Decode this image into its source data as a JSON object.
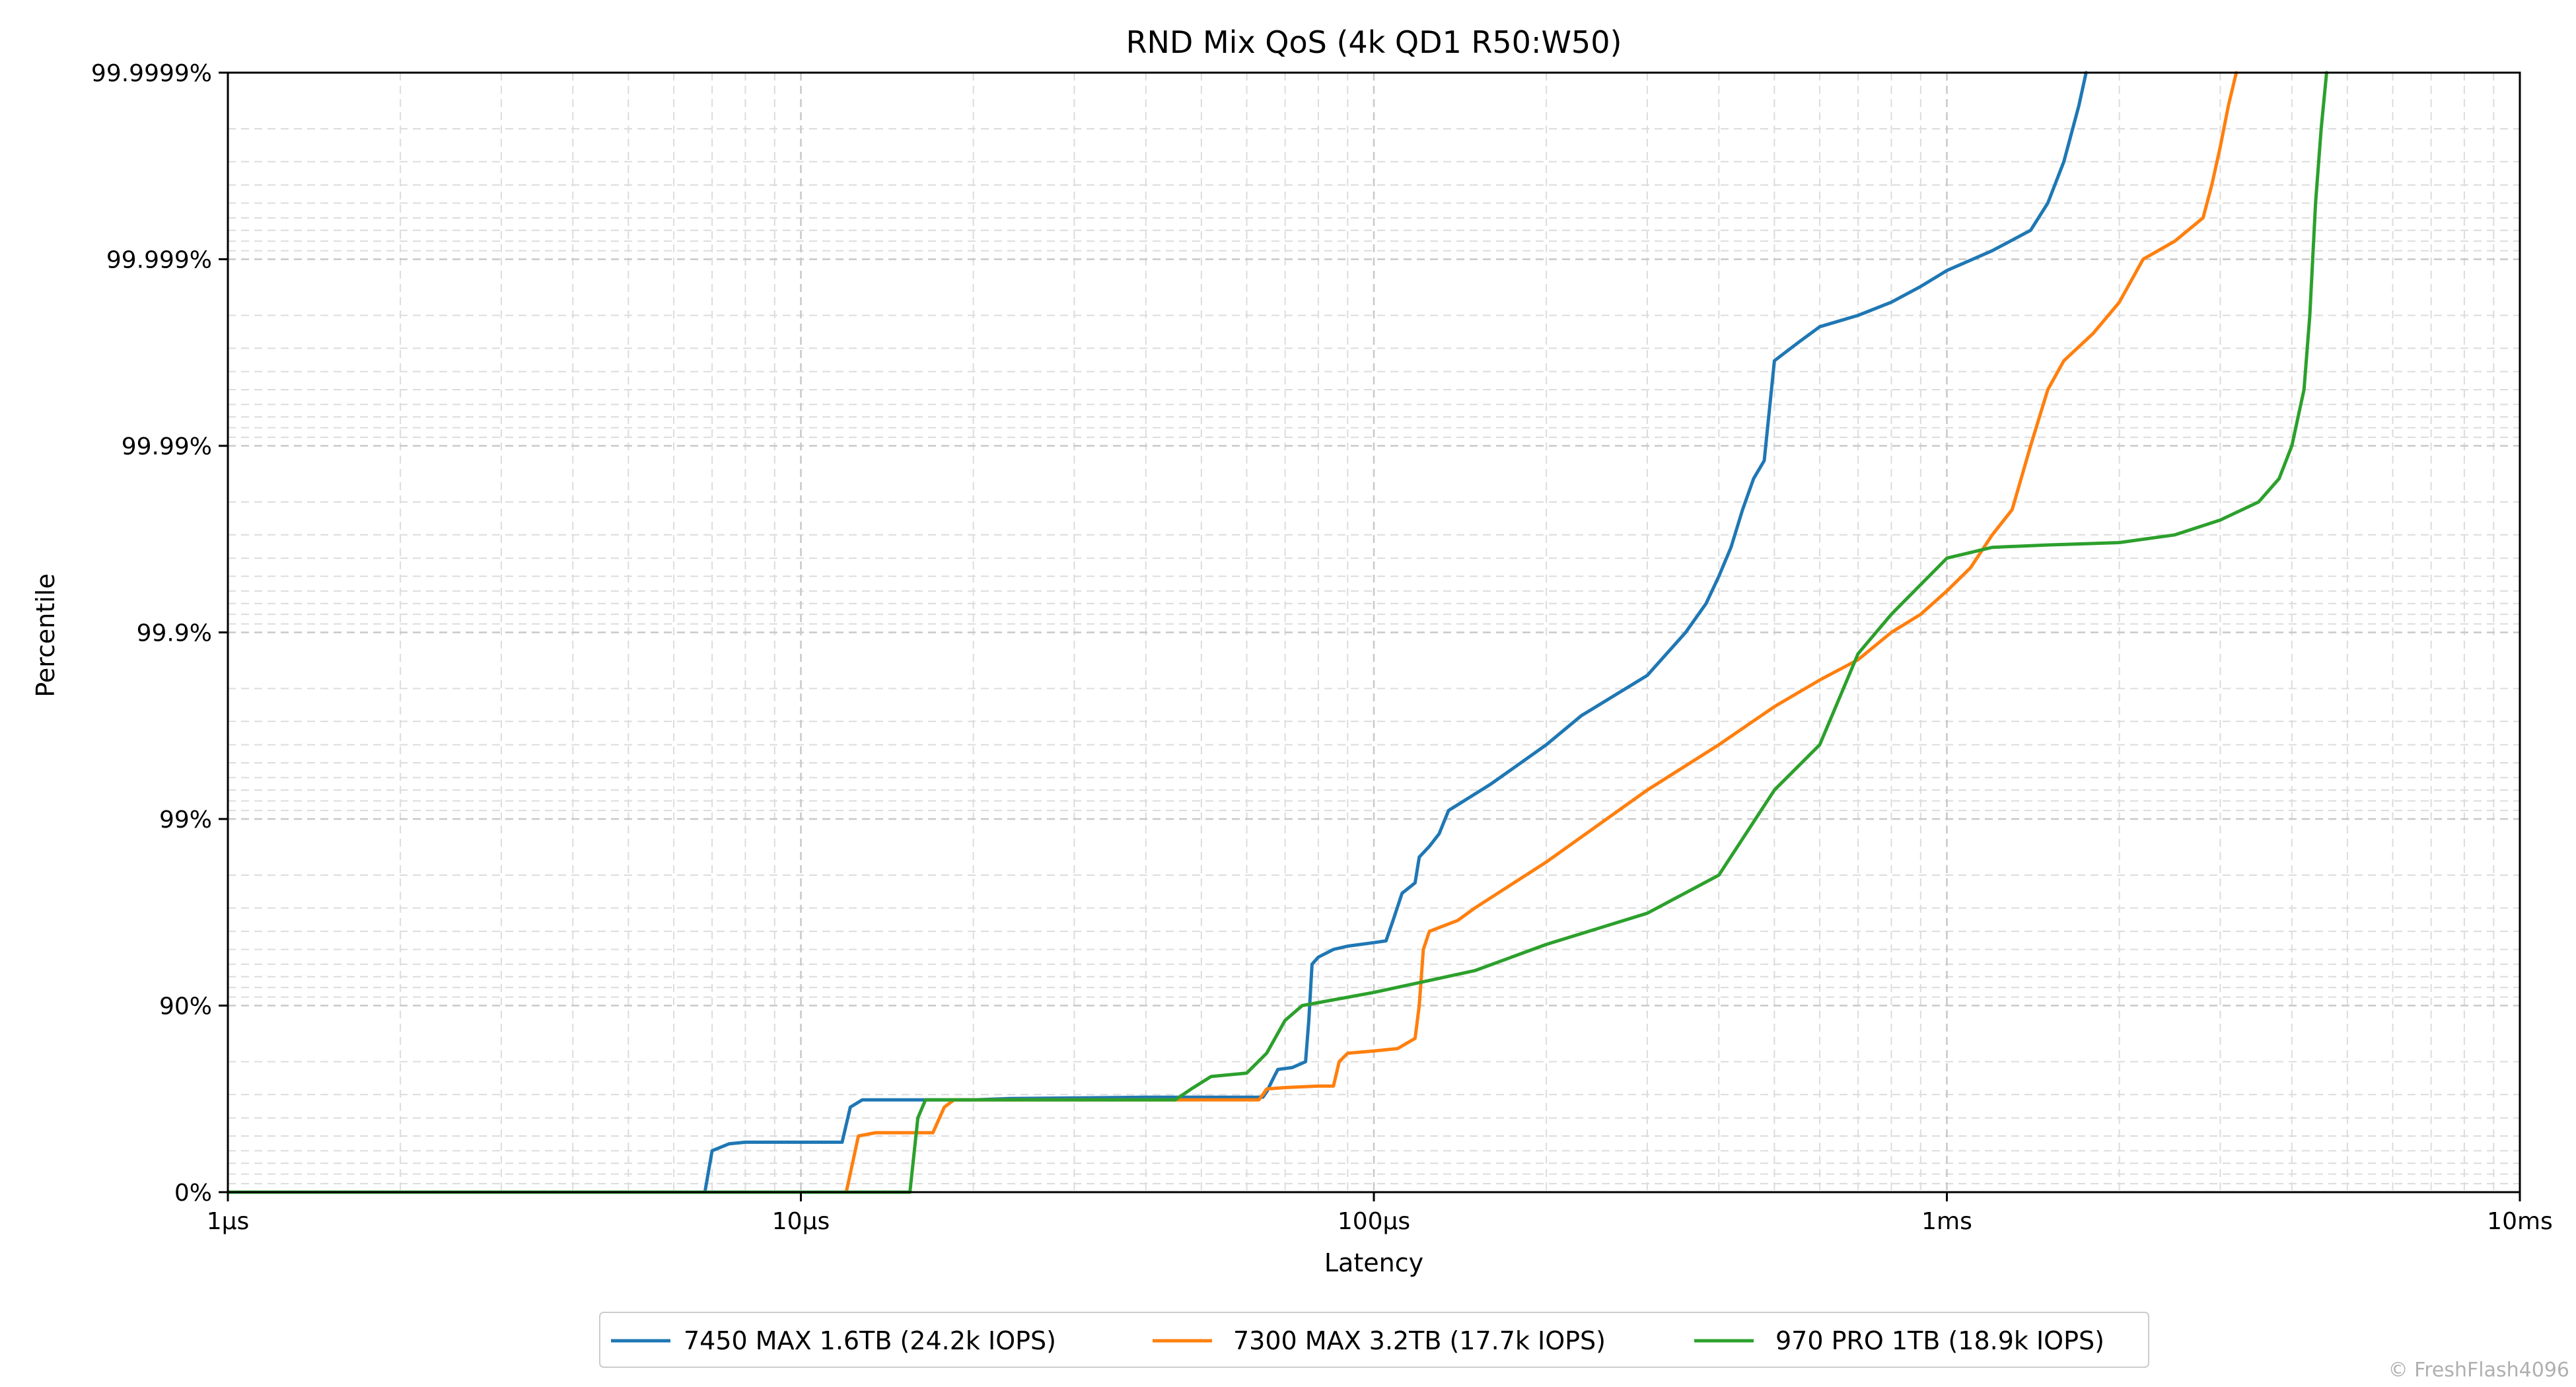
{
  "chart_data": {
    "type": "line",
    "title": "RND Mix QoS (4k QD1 R50:W50)",
    "xlabel": "Latency",
    "ylabel": "Percentile",
    "x_scale": "log",
    "xlim": [
      "1µs",
      "10ms"
    ],
    "x_ticks": [
      {
        "value_us": 1,
        "label": "1µs"
      },
      {
        "value_us": 10,
        "label": "10µs"
      },
      {
        "value_us": 100,
        "label": "100µs"
      },
      {
        "value_us": 1000,
        "label": "1ms"
      },
      {
        "value_us": 10000,
        "label": "10ms"
      }
    ],
    "y_scale": "nines (percentile)",
    "y_ticks": [
      {
        "value": 0,
        "label": "0%"
      },
      {
        "value": 90,
        "label": "90%"
      },
      {
        "value": 99,
        "label": "99%"
      },
      {
        "value": 99.9,
        "label": "99.9%"
      },
      {
        "value": 99.99,
        "label": "99.99%"
      },
      {
        "value": 99.999,
        "label": "99.999%"
      },
      {
        "value": 99.9999,
        "label": "99.9999%"
      }
    ],
    "grid": true,
    "legend_position": "bottom-center",
    "x_unit": "µs",
    "y_unit": "%",
    "series": [
      {
        "name": "7450 MAX 1.6TB (24.2k IOPS)",
        "color": "#1f77b4",
        "points": [
          [
            6.8,
            0
          ],
          [
            7.0,
            40
          ],
          [
            7.5,
            45
          ],
          [
            8,
            46
          ],
          [
            10,
            46
          ],
          [
            11.8,
            46
          ],
          [
            12.2,
            65
          ],
          [
            12.8,
            68
          ],
          [
            15,
            68
          ],
          [
            20,
            68
          ],
          [
            23,
            68.5
          ],
          [
            40,
            69
          ],
          [
            64,
            69
          ],
          [
            65,
            71
          ],
          [
            67,
            76
          ],
          [
            68,
            78
          ],
          [
            72,
            78.5
          ],
          [
            76,
            80
          ],
          [
            77,
            88
          ],
          [
            78,
            94
          ],
          [
            80,
            94.5
          ],
          [
            85,
            95
          ],
          [
            90,
            95.2
          ],
          [
            100,
            95.4
          ],
          [
            105,
            95.5
          ],
          [
            108,
            96.5
          ],
          [
            112,
            97.5
          ],
          [
            118,
            97.8
          ],
          [
            120,
            98.4
          ],
          [
            125,
            98.6
          ],
          [
            130,
            98.8
          ],
          [
            135,
            99.1
          ],
          [
            160,
            99.35
          ],
          [
            200,
            99.6
          ],
          [
            230,
            99.72
          ],
          [
            300,
            99.83
          ],
          [
            350,
            99.9
          ],
          [
            380,
            99.93
          ],
          [
            400,
            99.95
          ],
          [
            420,
            99.965
          ],
          [
            440,
            99.978
          ],
          [
            460,
            99.985
          ],
          [
            480,
            99.988
          ],
          [
            500,
            99.9965
          ],
          [
            550,
            99.9972
          ],
          [
            600,
            99.9977
          ],
          [
            700,
            99.998
          ],
          [
            800,
            99.9983
          ],
          [
            900,
            99.9986
          ],
          [
            1000,
            99.99885
          ],
          [
            1200,
            99.9991
          ],
          [
            1400,
            99.9993
          ],
          [
            1500,
            99.9995
          ],
          [
            1600,
            99.9997
          ],
          [
            1700,
            99.99985
          ],
          [
            1750,
            99.9999
          ]
        ]
      },
      {
        "name": "7300 MAX 3.2TB (17.7k IOPS)",
        "color": "#ff7f0e",
        "points": [
          [
            1,
            0
          ],
          [
            12,
            0
          ],
          [
            12.6,
            50
          ],
          [
            13.5,
            52
          ],
          [
            17,
            52
          ],
          [
            17.8,
            65
          ],
          [
            18.5,
            68
          ],
          [
            30,
            68
          ],
          [
            62,
            68
          ],
          [
            63,
            68
          ],
          [
            64,
            70
          ],
          [
            65,
            72
          ],
          [
            70,
            72.5
          ],
          [
            80,
            73
          ],
          [
            85,
            73
          ],
          [
            87,
            80
          ],
          [
            90,
            82
          ],
          [
            100,
            82.5
          ],
          [
            110,
            83
          ],
          [
            118,
            85
          ],
          [
            120,
            90
          ],
          [
            122,
            95
          ],
          [
            125,
            96
          ],
          [
            140,
            96.5
          ],
          [
            150,
            97
          ],
          [
            200,
            98.3
          ],
          [
            300,
            99.3
          ],
          [
            400,
            99.6
          ],
          [
            500,
            99.75
          ],
          [
            600,
            99.82
          ],
          [
            700,
            99.86
          ],
          [
            800,
            99.9
          ],
          [
            900,
            99.92
          ],
          [
            1000,
            99.94
          ],
          [
            1100,
            99.955
          ],
          [
            1200,
            99.97
          ],
          [
            1300,
            99.978
          ],
          [
            1400,
            99.99
          ],
          [
            1500,
            99.995
          ],
          [
            1600,
            99.9965
          ],
          [
            1800,
            99.9975
          ],
          [
            2000,
            99.9983
          ],
          [
            2200,
            99.999
          ],
          [
            2500,
            99.9992
          ],
          [
            2800,
            99.9994
          ],
          [
            2900,
            99.9996
          ],
          [
            3000,
            99.99975
          ],
          [
            3100,
            99.99985
          ],
          [
            3200,
            99.9999
          ]
        ]
      },
      {
        "name": "970 PRO 1TB (18.9k IOPS)",
        "color": "#2ca02c",
        "points": [
          [
            1,
            0
          ],
          [
            15.5,
            0
          ],
          [
            16,
            60
          ],
          [
            16.5,
            68
          ],
          [
            20,
            68
          ],
          [
            40,
            68
          ],
          [
            45,
            68
          ],
          [
            48,
            72
          ],
          [
            52,
            76
          ],
          [
            60,
            77
          ],
          [
            65,
            82
          ],
          [
            70,
            88
          ],
          [
            75,
            90
          ],
          [
            100,
            91.5
          ],
          [
            150,
            93.5
          ],
          [
            200,
            95.3
          ],
          [
            300,
            96.8
          ],
          [
            400,
            98
          ],
          [
            500,
            99.3
          ],
          [
            600,
            99.6
          ],
          [
            700,
            99.87
          ],
          [
            800,
            99.92
          ],
          [
            1000,
            99.96
          ],
          [
            1200,
            99.965
          ],
          [
            1500,
            99.966
          ],
          [
            2000,
            99.967
          ],
          [
            2500,
            99.97
          ],
          [
            3000,
            99.975
          ],
          [
            3500,
            99.98
          ],
          [
            3800,
            99.985
          ],
          [
            4000,
            99.99
          ],
          [
            4200,
            99.995
          ],
          [
            4300,
            99.998
          ],
          [
            4400,
            99.9995
          ],
          [
            4500,
            99.9998
          ],
          [
            4600,
            99.9999
          ]
        ]
      }
    ]
  },
  "watermark": "© FreshFlash4096"
}
